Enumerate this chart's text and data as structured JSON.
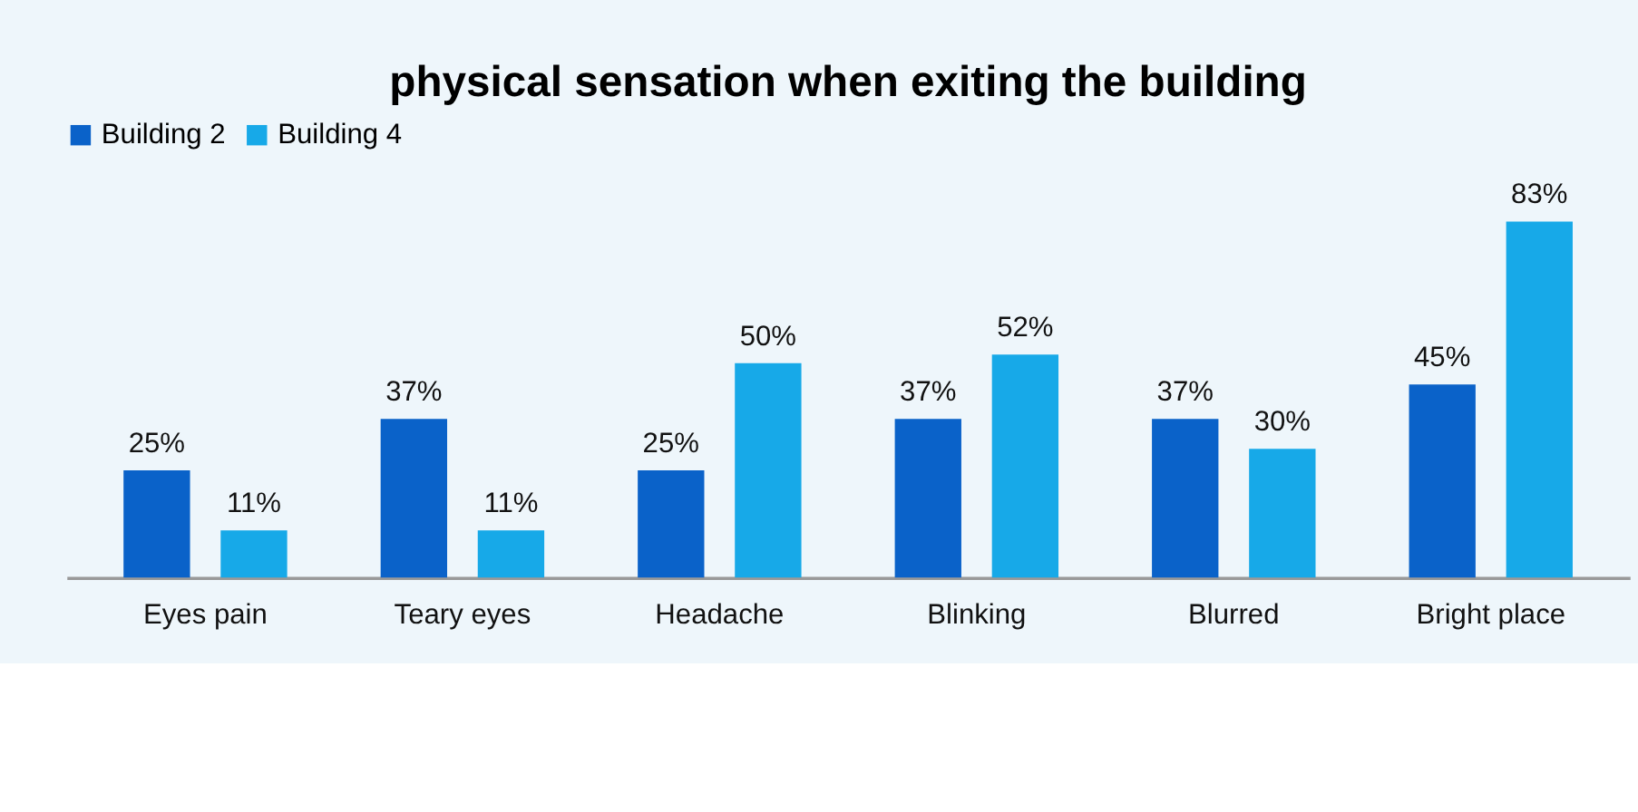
{
  "chart_data": {
    "type": "bar",
    "title": "physical sensation when exiting the building",
    "categories": [
      "Eyes pain",
      "Teary eyes",
      "Headache",
      "Blinking",
      "Blurred",
      "Bright place"
    ],
    "series": [
      {
        "name": "Building 2",
        "color": "#0a62c9",
        "values": [
          25,
          37,
          25,
          37,
          37,
          45
        ],
        "value_labels": [
          "25%",
          "37%",
          "25%",
          "37%",
          "37%",
          "45%"
        ]
      },
      {
        "name": "Building 4",
        "color": "#17a9e8",
        "values": [
          11,
          11,
          50,
          52,
          30,
          83
        ],
        "value_labels": [
          "11%",
          "11%",
          "50%",
          "52%",
          "30%",
          "83%"
        ]
      }
    ],
    "legend": "top",
    "grid": false
  }
}
